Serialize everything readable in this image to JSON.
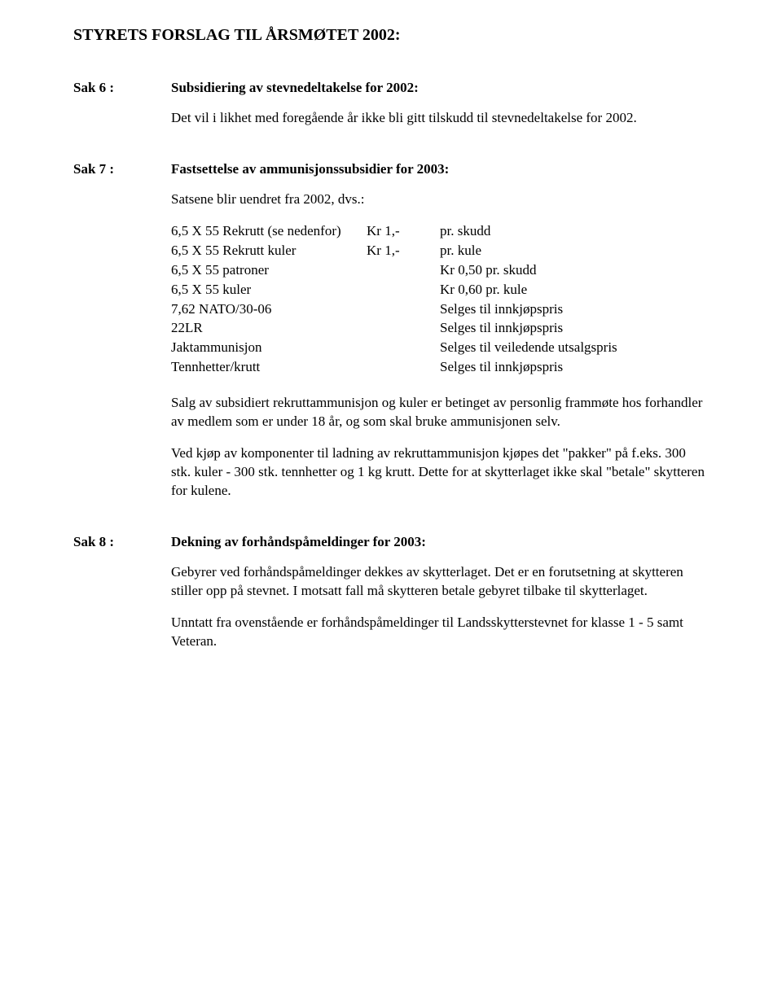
{
  "title": "STYRETS FORSLAG TIL ÅRSMØTET 2002:",
  "sak6": {
    "label": "Sak 6 :",
    "heading": "Subsidiering av stevnedeltakelse for 2002:",
    "p1": "Det vil i likhet med foregående år ikke bli gitt tilskudd til stevnedeltakelse for 2002."
  },
  "sak7": {
    "label": "Sak 7 :",
    "heading": "Fastsettelse av ammunisjonssubsidier for 2003:",
    "intro": "Satsene blir uendret fra 2002, dvs.:",
    "rows": [
      {
        "item": "6,5 X 55 Rekrutt (se nedenfor)",
        "amt": "Kr 1,-",
        "unit": "pr. skudd"
      },
      {
        "item": "6,5 X 55 Rekrutt kuler",
        "amt": "Kr 1,-",
        "unit": "pr. kule"
      },
      {
        "item": "6,5 X 55 patroner",
        "amt": "",
        "unit": "Kr 0,50 pr. skudd"
      },
      {
        "item": "6,5 X 55 kuler",
        "amt": "",
        "unit": "Kr 0,60 pr. kule"
      },
      {
        "item": "7,62 NATO/30-06",
        "amt": "",
        "unit": "Selges til innkjøpspris"
      },
      {
        "item": "22LR",
        "amt": "",
        "unit": "Selges til innkjøpspris"
      },
      {
        "item": "Jaktammunisjon",
        "amt": "",
        "unit": "Selges til veiledende utsalgspris"
      },
      {
        "item": "Tennhetter/krutt",
        "amt": "",
        "unit": "Selges til innkjøpspris"
      }
    ],
    "p1": "Salg av subsidiert rekruttammunisjon og kuler er betinget av personlig frammøte hos forhandler av medlem som er under 18 år, og som skal bruke ammunisjonen selv.",
    "p2": "Ved kjøp av komponenter til ladning av rekruttammunisjon kjøpes det \"pakker\" på f.eks. 300 stk. kuler - 300 stk. tennhetter og 1 kg krutt. Dette for at skytterlaget ikke skal \"betale\" skytteren for kulene."
  },
  "sak8": {
    "label": "Sak 8 :",
    "heading": "Dekning av forhåndspåmeldinger for 2003:",
    "p1": "Gebyrer ved forhåndspåmeldinger dekkes av skytterlaget. Det er en forutsetning at skytteren stiller opp på stevnet. I motsatt fall må skytteren betale gebyret tilbake til skytterlaget.",
    "p2": "Unntatt fra ovenstående er forhåndspåmeldinger til Landsskytterstevnet for klasse 1 - 5 samt Veteran."
  }
}
